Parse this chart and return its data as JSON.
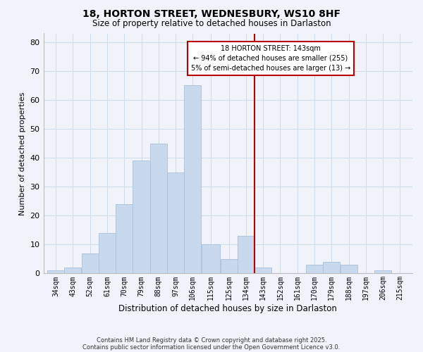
{
  "title": "18, HORTON STREET, WEDNESBURY, WS10 8HF",
  "subtitle": "Size of property relative to detached houses in Darlaston",
  "xlabel": "Distribution of detached houses by size in Darlaston",
  "ylabel": "Number of detached properties",
  "bar_color": "#c8d8ed",
  "bar_edge_color": "#a8c0d8",
  "background_color": "#f0f4fa",
  "grid_color": "#d0dcea",
  "vline_x": 143,
  "vline_color": "#bb0000",
  "categories": [
    "34sqm",
    "43sqm",
    "52sqm",
    "61sqm",
    "70sqm",
    "79sqm",
    "88sqm",
    "97sqm",
    "106sqm",
    "115sqm",
    "125sqm",
    "134sqm",
    "143sqm",
    "152sqm",
    "161sqm",
    "170sqm",
    "179sqm",
    "188sqm",
    "197sqm",
    "206sqm",
    "215sqm"
  ],
  "bin_edges": [
    34,
    43,
    52,
    61,
    70,
    79,
    88,
    97,
    106,
    115,
    125,
    134,
    143,
    152,
    161,
    170,
    179,
    188,
    197,
    206,
    215,
    224
  ],
  "values": [
    1,
    2,
    7,
    14,
    24,
    39,
    45,
    35,
    65,
    10,
    5,
    13,
    2,
    0,
    0,
    3,
    4,
    3,
    0,
    1,
    0
  ],
  "ylim": [
    0,
    83
  ],
  "yticks": [
    0,
    10,
    20,
    30,
    40,
    50,
    60,
    70,
    80
  ],
  "annotation_line1": "18 HORTON STREET: 143sqm",
  "annotation_line2": "← 94% of detached houses are smaller (255)",
  "annotation_line3": "5% of semi-detached houses are larger (13) →",
  "footnote1": "Contains HM Land Registry data © Crown copyright and database right 2025.",
  "footnote2": "Contains public sector information licensed under the Open Government Licence v3.0."
}
